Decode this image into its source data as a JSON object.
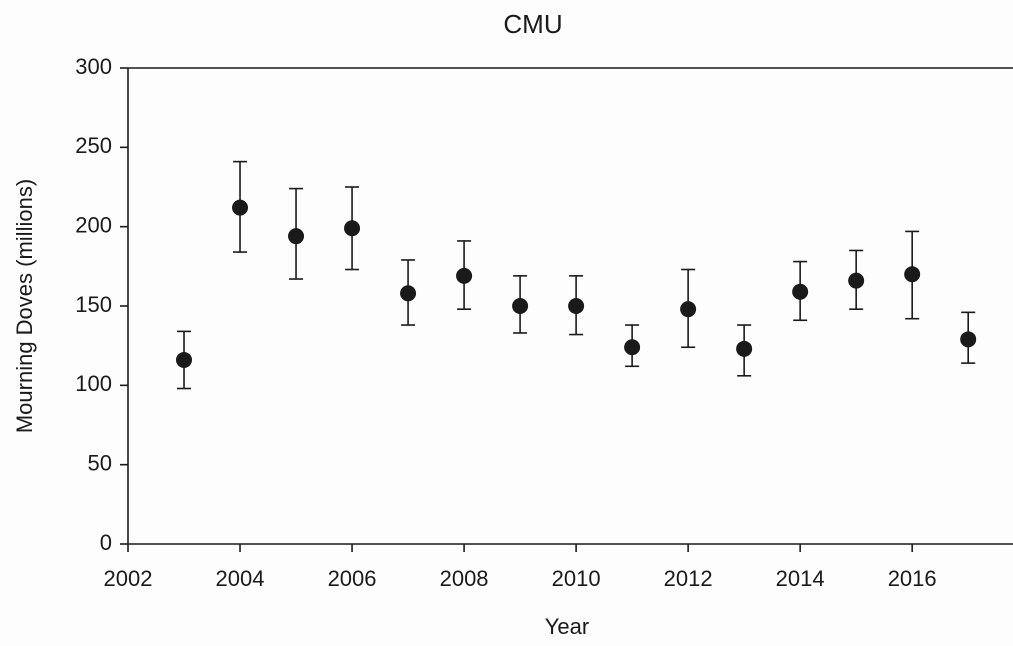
{
  "chart_data": {
    "type": "scatter",
    "title": "CMU",
    "x_label": "Year",
    "y_label": "Mourning Doves (millions)",
    "x": [
      2003,
      2004,
      2005,
      2006,
      2007,
      2008,
      2009,
      2010,
      2011,
      2012,
      2013,
      2014,
      2015,
      2016,
      2017
    ],
    "series": [
      {
        "color": "#1a1a1a",
        "values": [
          116,
          212,
          194,
          199,
          158,
          169,
          150,
          150,
          124,
          148,
          123,
          159,
          166,
          170,
          129
        ],
        "error_minus": [
          18,
          28,
          27,
          26,
          20,
          21,
          17,
          18,
          12,
          24,
          17,
          18,
          18,
          28,
          15
        ],
        "error_plus": [
          18,
          29,
          30,
          26,
          21,
          22,
          19,
          19,
          14,
          25,
          15,
          19,
          19,
          27,
          17
        ]
      }
    ],
    "xlim": [
      2002,
      2017.8
    ],
    "xticks": [
      2002,
      2004,
      2006,
      2008,
      2010,
      2012,
      2014,
      2016
    ],
    "ylim": [
      0,
      300
    ],
    "yticks": [
      0,
      50,
      100,
      150,
      200,
      250,
      300
    ]
  }
}
